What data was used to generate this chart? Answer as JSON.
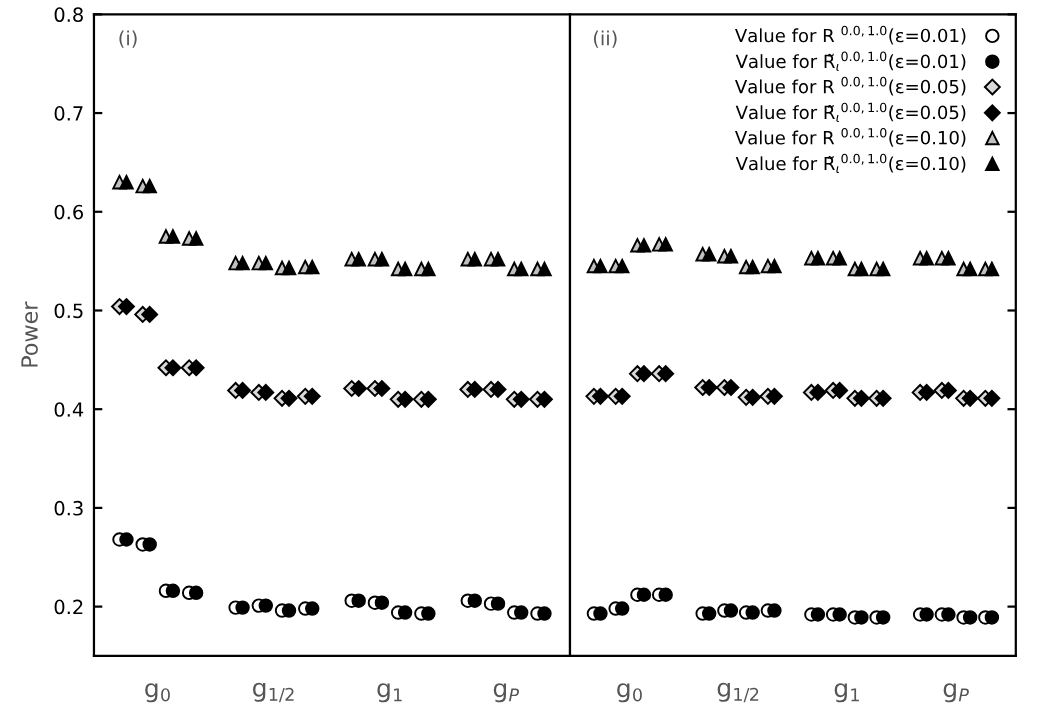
{
  "chart_data": [
    {
      "type": "scatter",
      "ylabel": "Power",
      "annotations": [
        "(i)"
      ],
      "ylim": [
        0.15,
        0.8
      ],
      "yticks": [
        0.2,
        0.3,
        0.4,
        0.5,
        0.6,
        0.7,
        0.8
      ],
      "categories": [
        "g$_{0}$",
        "g$_{1/2}$",
        "g$_{1}$",
        "g$_{P}$"
      ],
      "grid": false,
      "legend": false,
      "series": [
        {
          "marker": "circle",
          "color": "#ffffff",
          "values": [
            0.268,
            0.199,
            0.206,
            0.206
          ]
        },
        {
          "marker": "circle",
          "color": "#000000",
          "values": [
            0.268,
            0.199,
            0.206,
            0.206
          ]
        },
        {
          "marker": "diamond",
          "color": "#d9d9d9",
          "values": [
            0.504,
            0.419,
            0.421,
            0.42
          ]
        },
        {
          "marker": "diamond",
          "color": "#000000",
          "values": [
            0.504,
            0.419,
            0.421,
            0.42
          ]
        },
        {
          "marker": "triangle",
          "color": "#c0c0c0",
          "values": [
            0.63,
            0.548,
            0.552,
            0.552
          ]
        },
        {
          "marker": "triangle",
          "color": "#000000",
          "values": [
            0.63,
            0.548,
            0.552,
            0.552
          ]
        },
        {
          "marker": "circle",
          "color": "#ffffff",
          "values": [
            0.263,
            0.201,
            0.204,
            0.203
          ]
        },
        {
          "marker": "circle",
          "color": "#000000",
          "values": [
            0.263,
            0.201,
            0.204,
            0.203
          ]
        },
        {
          "marker": "diamond",
          "color": "#d9d9d9",
          "values": [
            0.496,
            0.417,
            0.421,
            0.42
          ]
        },
        {
          "marker": "diamond",
          "color": "#000000",
          "values": [
            0.496,
            0.417,
            0.421,
            0.42
          ]
        },
        {
          "marker": "triangle",
          "color": "#c0c0c0",
          "values": [
            0.626,
            0.548,
            0.552,
            0.552
          ]
        },
        {
          "marker": "triangle",
          "color": "#000000",
          "values": [
            0.626,
            0.548,
            0.552,
            0.552
          ]
        },
        {
          "marker": "circle",
          "color": "#ffffff",
          "values": [
            0.216,
            0.196,
            0.194,
            0.194
          ]
        },
        {
          "marker": "circle",
          "color": "#000000",
          "values": [
            0.216,
            0.196,
            0.194,
            0.194
          ]
        },
        {
          "marker": "diamond",
          "color": "#d9d9d9",
          "values": [
            0.442,
            0.411,
            0.41,
            0.41
          ]
        },
        {
          "marker": "diamond",
          "color": "#000000",
          "values": [
            0.442,
            0.411,
            0.41,
            0.41
          ]
        },
        {
          "marker": "triangle",
          "color": "#c0c0c0",
          "values": [
            0.575,
            0.543,
            0.542,
            0.542
          ]
        },
        {
          "marker": "triangle",
          "color": "#000000",
          "values": [
            0.575,
            0.543,
            0.542,
            0.542
          ]
        },
        {
          "marker": "circle",
          "color": "#ffffff",
          "values": [
            0.214,
            0.198,
            0.193,
            0.193
          ]
        },
        {
          "marker": "circle",
          "color": "#000000",
          "values": [
            0.214,
            0.198,
            0.193,
            0.193
          ]
        },
        {
          "marker": "diamond",
          "color": "#d9d9d9",
          "values": [
            0.442,
            0.413,
            0.41,
            0.41
          ]
        },
        {
          "marker": "diamond",
          "color": "#000000",
          "values": [
            0.442,
            0.413,
            0.41,
            0.41
          ]
        },
        {
          "marker": "triangle",
          "color": "#c0c0c0",
          "values": [
            0.573,
            0.544,
            0.542,
            0.542
          ]
        },
        {
          "marker": "triangle",
          "color": "#000000",
          "values": [
            0.573,
            0.544,
            0.542,
            0.542
          ]
        }
      ]
    },
    {
      "type": "scatter",
      "annotations": [
        "(ii)"
      ],
      "ylim": [
        0.15,
        0.8
      ],
      "yticks": [
        {
          "value": 0.2,
          "label": null
        },
        {
          "value": 0.3,
          "label": null
        },
        {
          "value": 0.4,
          "label": null
        },
        {
          "value": 0.5,
          "label": null
        },
        {
          "value": 0.6,
          "label": null
        },
        {
          "value": 0.7,
          "label": null
        },
        {
          "value": 0.8,
          "label": null
        }
      ],
      "categories": [
        "g$_{0}$",
        "g$_{1/2}$",
        "g$_{1}$",
        "g$_{P}$"
      ],
      "tick_labels": "x",
      "grid": false,
      "legend": "top right",
      "series": [
        {
          "name": "Value for R $^{0.0,1.0}$(ε=0.01)",
          "marker": "circle",
          "color": "#ffffff",
          "values": [
            0.193,
            0.193,
            0.192,
            0.192
          ]
        },
        {
          "name": "Value for R̃$_{ι}$$^{0.0,1.0}$(ε=0.01)",
          "marker": "circle",
          "color": "#000000",
          "values": [
            0.193,
            0.193,
            0.192,
            0.192
          ]
        },
        {
          "name": "Value for R $^{0.0,1.0}$(ε=0.05)",
          "marker": "diamond",
          "color": "#d9d9d9",
          "values": [
            0.413,
            0.422,
            0.417,
            0.417
          ]
        },
        {
          "name": "Value for R̃$_{ι}$$^{0.0,1.0}$(ε=0.05)",
          "marker": "diamond",
          "color": "#000000",
          "values": [
            0.413,
            0.422,
            0.417,
            0.417
          ]
        },
        {
          "name": "Value for R $^{0.0,1.0}$(ε=0.10)",
          "marker": "triangle",
          "color": "#c0c0c0",
          "values": [
            0.545,
            0.557,
            0.553,
            0.553
          ]
        },
        {
          "name": "Value for R̃$_{ι}$$^{0.0,1.0}$(ε=0.10)",
          "marker": "triangle",
          "color": "#000000",
          "values": [
            0.545,
            0.557,
            0.553,
            0.553
          ]
        },
        {
          "marker": "circle",
          "color": "#ffffff",
          "values": [
            0.198,
            0.196,
            0.192,
            0.192
          ]
        },
        {
          "marker": "circle",
          "color": "#000000",
          "values": [
            0.198,
            0.196,
            0.192,
            0.192
          ]
        },
        {
          "marker": "diamond",
          "color": "#d9d9d9",
          "values": [
            0.413,
            0.422,
            0.419,
            0.419
          ]
        },
        {
          "marker": "diamond",
          "color": "#000000",
          "values": [
            0.413,
            0.422,
            0.419,
            0.419
          ]
        },
        {
          "marker": "triangle",
          "color": "#c0c0c0",
          "values": [
            0.545,
            0.555,
            0.553,
            0.553
          ]
        },
        {
          "marker": "triangle",
          "color": "#000000",
          "values": [
            0.545,
            0.555,
            0.553,
            0.553
          ]
        },
        {
          "marker": "circle",
          "color": "#ffffff",
          "values": [
            0.212,
            0.194,
            0.189,
            0.189
          ]
        },
        {
          "marker": "circle",
          "color": "#000000",
          "values": [
            0.212,
            0.194,
            0.189,
            0.189
          ]
        },
        {
          "marker": "diamond",
          "color": "#d9d9d9",
          "values": [
            0.436,
            0.412,
            0.411,
            0.411
          ]
        },
        {
          "marker": "diamond",
          "color": "#000000",
          "values": [
            0.436,
            0.412,
            0.411,
            0.411
          ]
        },
        {
          "marker": "triangle",
          "color": "#c0c0c0",
          "values": [
            0.566,
            0.544,
            0.542,
            0.542
          ]
        },
        {
          "marker": "triangle",
          "color": "#000000",
          "values": [
            0.566,
            0.544,
            0.542,
            0.542
          ]
        },
        {
          "marker": "circle",
          "color": "#ffffff",
          "values": [
            0.212,
            0.196,
            0.189,
            0.189
          ]
        },
        {
          "marker": "circle",
          "color": "#000000",
          "values": [
            0.212,
            0.196,
            0.189,
            0.189
          ]
        },
        {
          "marker": "diamond",
          "color": "#d9d9d9",
          "values": [
            0.436,
            0.413,
            0.411,
            0.411
          ]
        },
        {
          "marker": "diamond",
          "color": "#000000",
          "values": [
            0.436,
            0.413,
            0.411,
            0.411
          ]
        },
        {
          "marker": "triangle",
          "color": "#c0c0c0",
          "values": [
            0.567,
            0.545,
            0.542,
            0.542
          ]
        },
        {
          "marker": "triangle",
          "color": "#000000",
          "values": [
            0.567,
            0.545,
            0.542,
            0.542
          ]
        }
      ]
    }
  ]
}
